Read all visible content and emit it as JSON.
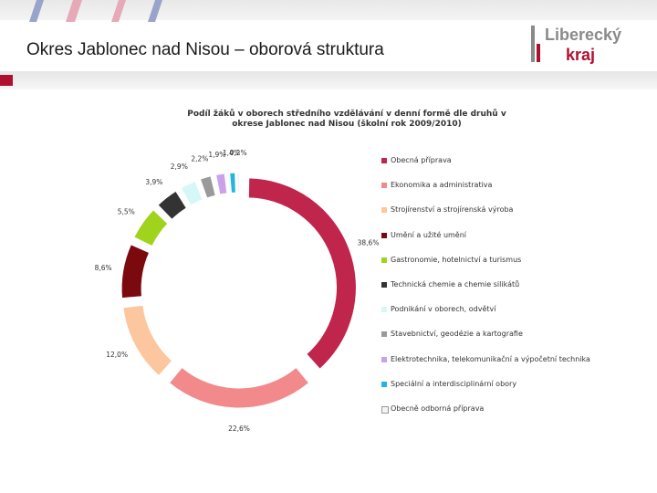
{
  "slide": {
    "title": "Okres Jablonec nad Nisou – oborová struktura",
    "logo_line1": "Liberecký",
    "logo_line2": "kraj"
  },
  "colors": {
    "accent": "#b0102f",
    "logo_gray": "#8a8a8a",
    "logo_red": "#b0102f"
  },
  "chart_data": {
    "type": "pie",
    "title": "Podíl žáků v oborech středního vzdělávání v denní formě dle druhů v okrese Jablonec nad Nisou (školní rok 2009/2010)",
    "legend_position": "right",
    "categories": [
      "Obecná příprava",
      "Ekonomika a administrativa",
      "Strojírenství a strojírenská výroba",
      "Umění a užité umění",
      "Gastronomie, hotelnictví a turismus",
      "Technická chemie a chemie silikátů",
      "Podnikání v oborech, odvětví",
      "Stavebnictví, geodézie a kartografie",
      "Elektrotechnika, telekomunikační a výpočetní technika",
      "Speciální a interdisciplinární obory",
      "Obecně odborná příprava"
    ],
    "values": [
      38.6,
      22.6,
      12.0,
      8.6,
      5.5,
      3.9,
      2.9,
      2.2,
      1.9,
      1.4,
      0.2
    ],
    "labels": [
      "38,6%",
      "22,6%",
      "12,0%",
      "8,6%",
      "5,5%",
      "3,9%",
      "2,9%",
      "2,2%",
      "1,9%",
      "1,4%",
      "0,2%"
    ],
    "colors": [
      "#c0264b",
      "#f28a8c",
      "#fcc79f",
      "#7b0a0f",
      "#9fd31c",
      "#333333",
      "#d6f6f8",
      "#9a9a9a",
      "#c9a2ea",
      "#22b6de",
      "#f4f4f4"
    ]
  }
}
